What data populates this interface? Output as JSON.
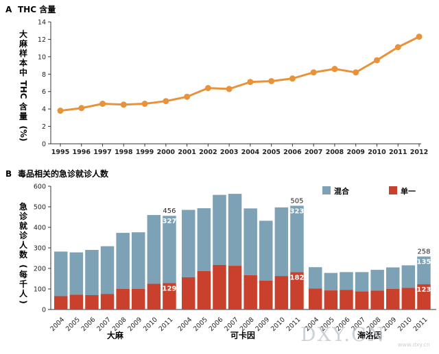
{
  "colors": {
    "line": "#e8923a",
    "mixed": "#7da1b5",
    "single": "#c9412d",
    "axis": "#333333"
  },
  "chart_data": [
    {
      "type": "line",
      "panel": "A",
      "title": "THC 含量",
      "ylabel": "大麻样本中 THC 含量 (%)",
      "ylim": [
        0,
        14
      ],
      "yticks": [
        0,
        2,
        4,
        6,
        8,
        10,
        12,
        14
      ],
      "x": [
        "1995",
        "1996",
        "1997",
        "1998",
        "1999",
        "2000",
        "2001",
        "2002",
        "2003",
        "2004",
        "2005",
        "2006",
        "2007",
        "2008",
        "2009",
        "2010",
        "2011",
        "2012"
      ],
      "series": [
        {
          "values": [
            3.8,
            4.1,
            4.6,
            4.5,
            4.6,
            4.9,
            5.4,
            6.4,
            6.3,
            7.1,
            7.2,
            7.5,
            8.2,
            8.6,
            8.2,
            9.6,
            11.1,
            12.3
          ]
        }
      ],
      "grid": false
    },
    {
      "type": "bar",
      "panel": "B",
      "title": "毒品相关的急诊就诊人数",
      "ylabel": "急诊就诊人数 (每千人)",
      "ylim": [
        0,
        600
      ],
      "yticks": [
        0,
        100,
        200,
        300,
        400,
        500,
        600
      ],
      "legend": {
        "placement": "top-right",
        "items": [
          {
            "label": "混合",
            "key": "mixed"
          },
          {
            "label": "单一",
            "key": "single"
          }
        ]
      },
      "stacked": true,
      "groups": [
        {
          "name": "大麻",
          "categories": [
            "2004",
            "2005",
            "2006",
            "2007",
            "2008",
            "2009",
            "2010",
            "2011"
          ],
          "single": [
            65,
            72,
            70,
            75,
            100,
            100,
            125,
            129
          ],
          "total": [
            282,
            278,
            290,
            308,
            373,
            376,
            460,
            456
          ],
          "labels": {
            "total": "456",
            "mixed": "327",
            "single": "129"
          }
        },
        {
          "name": "可卡因",
          "categories": [
            "2004",
            "2005",
            "2006",
            "2007",
            "2008",
            "2009",
            "2010",
            "2011"
          ],
          "single": [
            157,
            187,
            217,
            213,
            167,
            140,
            163,
            182
          ],
          "total": [
            485,
            493,
            558,
            563,
            492,
            432,
            497,
            505
          ],
          "labels": {
            "total": "505",
            "mixed": "323",
            "single": "182"
          }
        },
        {
          "name": "海洛因",
          "categories": [
            "2004",
            "2005",
            "2006",
            "2007",
            "2008",
            "2009",
            "2010",
            "2011"
          ],
          "single": [
            102,
            93,
            95,
            88,
            92,
            100,
            105,
            123
          ],
          "total": [
            206,
            178,
            182,
            182,
            193,
            205,
            215,
            258
          ],
          "labels": {
            "total": "258",
            "mixed": "135",
            "single": "123"
          }
        }
      ]
    }
  ],
  "watermark": {
    "text": "DXY.CN",
    "small": "www.dxy.cn"
  }
}
